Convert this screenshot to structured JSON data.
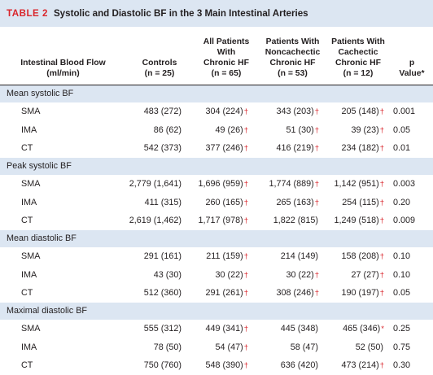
{
  "table": {
    "number": "TABLE 2",
    "title": "Systolic and Diastolic BF in the 3 Main Intestinal Arteries",
    "headers": [
      [
        "Intestinal Blood Flow",
        "(ml/min)"
      ],
      [
        "Controls",
        "(n = 25)"
      ],
      [
        "All Patients",
        "With",
        "Chronic HF",
        "(n = 65)"
      ],
      [
        "Patients With",
        "Noncachectic",
        "Chronic HF",
        "(n = 53)"
      ],
      [
        "Patients With",
        "Cachectic",
        "Chronic HF",
        "(n = 12)"
      ],
      [
        "p",
        "Value*"
      ]
    ],
    "groups": [
      {
        "label": "Mean systolic BF",
        "rows": [
          {
            "artery": "SMA",
            "controls": "483 (272)",
            "all": "304 (224)",
            "all_dagger": "†",
            "noncachectic": "343 (203)",
            "noncachectic_dagger": "†",
            "cachectic": "205 (148)",
            "cachectic_dagger": "†",
            "p": "0.001"
          },
          {
            "artery": "IMA",
            "controls": "86 (62)",
            "all": "49 (26)",
            "all_dagger": "†",
            "noncachectic": "51 (30)",
            "noncachectic_dagger": "†",
            "cachectic": "39 (23)",
            "cachectic_dagger": "†",
            "p": "0.05"
          },
          {
            "artery": "CT",
            "controls": "542 (373)",
            "all": "377 (246)",
            "all_dagger": "†",
            "noncachectic": "416 (219)",
            "noncachectic_dagger": "†",
            "cachectic": "234 (182)",
            "cachectic_dagger": "†",
            "p": "0.01"
          }
        ]
      },
      {
        "label": "Peak systolic BF",
        "rows": [
          {
            "artery": "SMA",
            "controls": "2,779 (1,641)",
            "all": "1,696 (959)",
            "all_dagger": "†",
            "noncachectic": "1,774 (889)",
            "noncachectic_dagger": "†",
            "cachectic": "1,142 (951)",
            "cachectic_dagger": "†",
            "p": "0.003"
          },
          {
            "artery": "IMA",
            "controls": "411 (315)",
            "all": "260 (165)",
            "all_dagger": "†",
            "noncachectic": "265 (163)",
            "noncachectic_dagger": "†",
            "cachectic": "254 (115)",
            "cachectic_dagger": "†",
            "p": "0.20"
          },
          {
            "artery": "CT",
            "controls": "2,619 (1,462)",
            "all": "1,717 (978)",
            "all_dagger": "†",
            "noncachectic": "1,822 (815)",
            "noncachectic_dagger": "",
            "cachectic": "1,249 (518)",
            "cachectic_dagger": "†",
            "p": "0.009"
          }
        ]
      },
      {
        "label": "Mean diastolic BF",
        "rows": [
          {
            "artery": "SMA",
            "controls": "291 (161)",
            "all": "211 (159)",
            "all_dagger": "†",
            "noncachectic": "214 (149)",
            "noncachectic_dagger": "",
            "cachectic": "158 (208)",
            "cachectic_dagger": "†",
            "p": "0.10"
          },
          {
            "artery": "IMA",
            "controls": "43 (30)",
            "all": "30 (22)",
            "all_dagger": "†",
            "noncachectic": "30 (22)",
            "noncachectic_dagger": "†",
            "cachectic": "27 (27)",
            "cachectic_dagger": "†",
            "p": "0.10"
          },
          {
            "artery": "CT",
            "controls": "512 (360)",
            "all": "291 (261)",
            "all_dagger": "†",
            "noncachectic": "308 (246)",
            "noncachectic_dagger": "†",
            "cachectic": "190 (197)",
            "cachectic_dagger": "†",
            "p": "0.05"
          }
        ]
      },
      {
        "label": "Maximal diastolic BF",
        "rows": [
          {
            "artery": "SMA",
            "controls": "555 (312)",
            "all": "449 (341)",
            "all_dagger": "†",
            "noncachectic": "445 (348)",
            "noncachectic_dagger": "",
            "cachectic": "465 (346)",
            "cachectic_dagger": "*",
            "p": "0.25"
          },
          {
            "artery": "IMA",
            "controls": "78 (50)",
            "all": "54 (47)",
            "all_dagger": "†",
            "noncachectic": "58 (47)",
            "noncachectic_dagger": "",
            "cachectic": "52 (50)",
            "cachectic_dagger": "",
            "p": "0.75"
          },
          {
            "artery": "CT",
            "controls": "750 (760)",
            "all": "548 (390)",
            "all_dagger": "†",
            "noncachectic": "636 (420)",
            "noncachectic_dagger": "",
            "cachectic": "473 (214)",
            "cachectic_dagger": "†",
            "p": "0.30"
          }
        ]
      }
    ]
  },
  "colors": {
    "header_band": "#dce6f2",
    "accent_red": "#d9262c",
    "text": "#231f20"
  }
}
